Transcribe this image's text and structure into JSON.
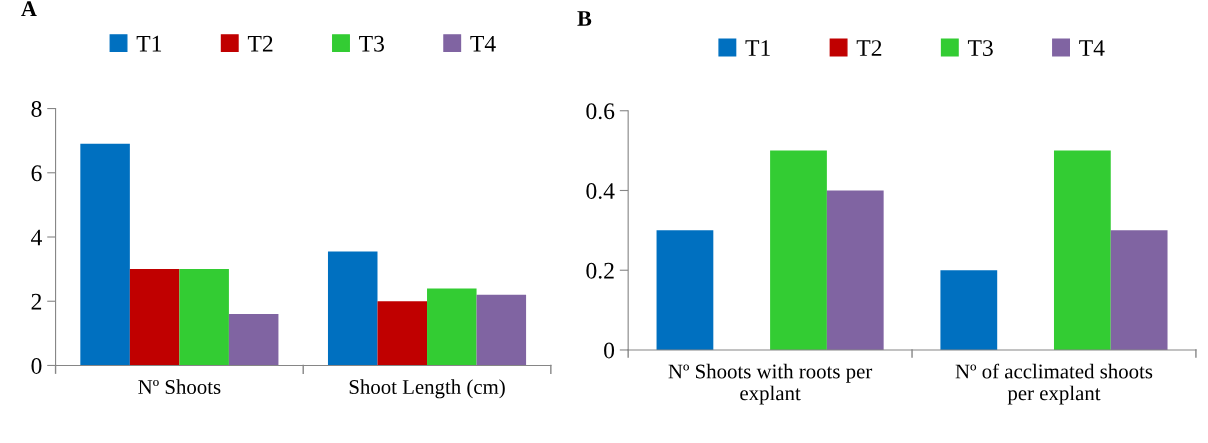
{
  "chart_data": [
    {
      "type": "bar",
      "title": "A",
      "categories": [
        "Nº Shoots",
        "Shoot Length (cm)"
      ],
      "series": [
        {
          "name": "T1",
          "color": "#0070c0",
          "values": [
            6.9,
            3.55
          ]
        },
        {
          "name": "T2",
          "color": "#c00000",
          "values": [
            3.0,
            2.0
          ]
        },
        {
          "name": "T3",
          "color": "#33cc33",
          "values": [
            3.0,
            2.4
          ]
        },
        {
          "name": "T4",
          "color": "#8064a2",
          "values": [
            1.6,
            2.2
          ]
        }
      ],
      "ylim": [
        0,
        8
      ],
      "yticks": [
        0,
        2,
        4,
        6,
        8
      ],
      "legend": "top",
      "grid": false
    },
    {
      "type": "bar",
      "title": "B",
      "categories": [
        "Nº Shoots with roots per explant",
        "Nº of acclimated shoots per explant"
      ],
      "series": [
        {
          "name": "T1",
          "color": "#0070c0",
          "values": [
            0.3,
            0.2
          ]
        },
        {
          "name": "T2",
          "color": "#c00000",
          "values": [
            0,
            0
          ]
        },
        {
          "name": "T3",
          "color": "#33cc33",
          "values": [
            0.5,
            0.5
          ]
        },
        {
          "name": "T4",
          "color": "#8064a2",
          "values": [
            0.4,
            0.3
          ]
        }
      ],
      "ylim": [
        0,
        0.6
      ],
      "yticks": [
        0,
        0.2,
        0.4,
        0.6
      ],
      "legend": "top",
      "grid": false
    }
  ]
}
